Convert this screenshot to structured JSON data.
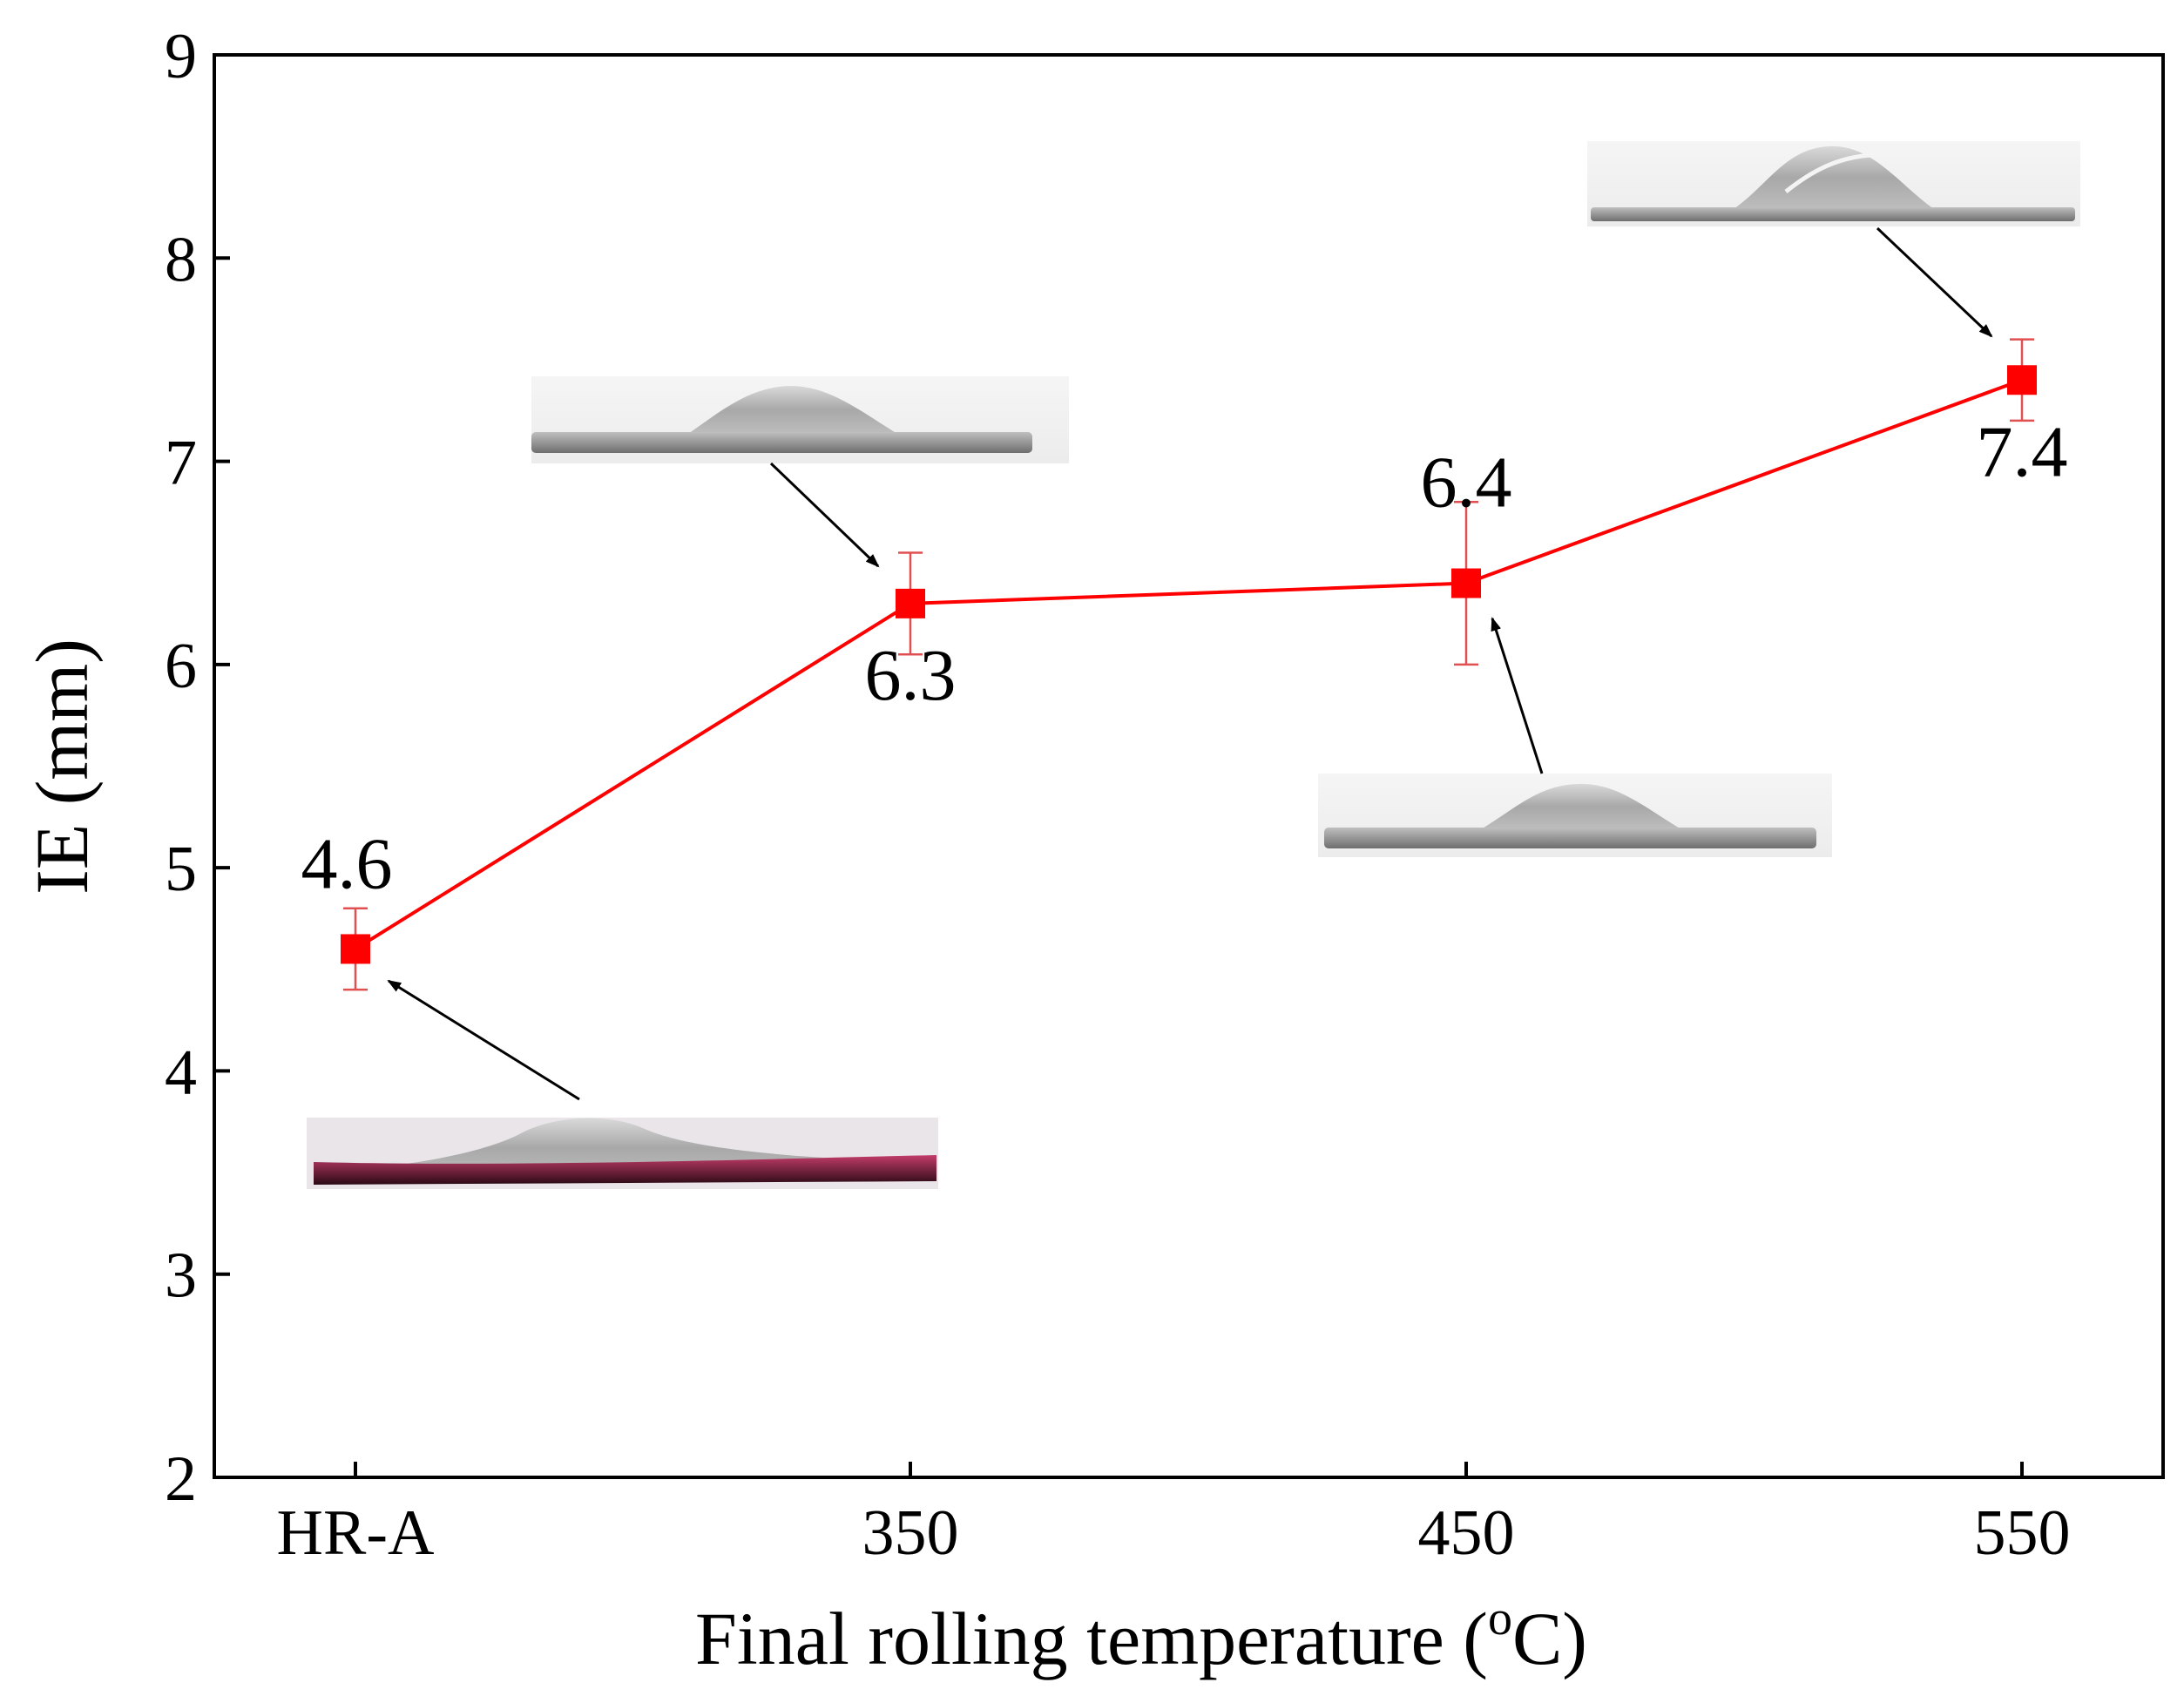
{
  "chart_data": {
    "type": "line",
    "categories": [
      "HR-A",
      "350",
      "450",
      "550"
    ],
    "series": [
      {
        "values": [
          4.6,
          6.3,
          6.4,
          7.4
        ],
        "error": [
          0.2,
          0.25,
          0.4,
          0.2
        ],
        "color": "#ff0000",
        "marker": "square"
      }
    ],
    "data_labels": [
      "4.6",
      "6.3",
      "6.4",
      "7.4"
    ],
    "xlabel": "Final rolling temperature (",
    "xlabel_superscript": "o",
    "xlabel_suffix": "C)",
    "ylabel": "IE (mm)",
    "ylim": [
      2,
      9
    ],
    "yticks": [
      2,
      3,
      4,
      5,
      6,
      7,
      8,
      9
    ],
    "grid": false,
    "legend": "none",
    "insets": [
      {
        "category": "HR-A",
        "description": "photo-of-bulged-sheet"
      },
      {
        "category": "350",
        "description": "photo-of-bulged-sheet"
      },
      {
        "category": "450",
        "description": "photo-of-bulged-sheet"
      },
      {
        "category": "550",
        "description": "photo-of-bulged-sheet"
      }
    ]
  }
}
